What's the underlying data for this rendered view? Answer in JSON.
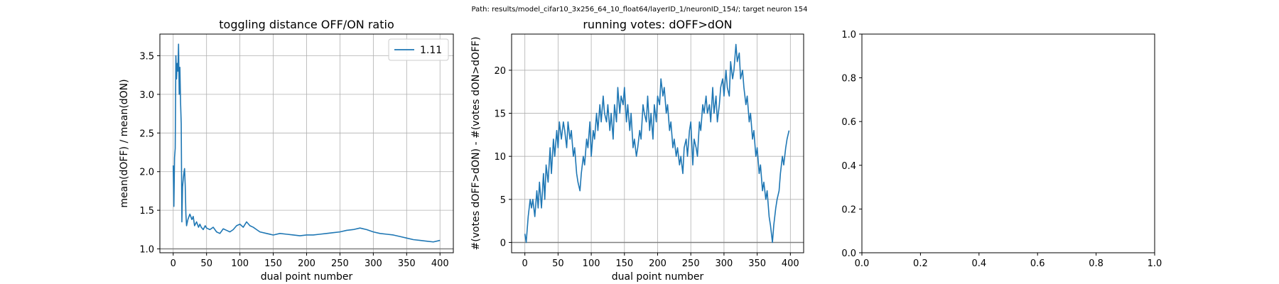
{
  "suptitle": "Path: results/model_cifar10_3x256_64_10_float64/layerID_1/neuronID_154/; target neuron 154",
  "colors": {
    "series": "#1f77b4",
    "grid": "#b0b0b0",
    "baseline": "#808080"
  },
  "chart_data": [
    {
      "type": "line",
      "title": "toggling distance OFF/ON ratio",
      "xlabel": "dual point number",
      "ylabel": "mean(dOFF) / mean(dON)",
      "xlim": [
        -20,
        420
      ],
      "ylim": [
        0.95,
        3.78
      ],
      "xticks": [
        0,
        50,
        100,
        150,
        200,
        250,
        300,
        350,
        400
      ],
      "yticks": [
        1.0,
        1.5,
        2.0,
        2.5,
        3.0,
        3.5
      ],
      "ytick_labels": [
        "1.0",
        "1.5",
        "2.0",
        "2.5",
        "3.0",
        "3.5"
      ],
      "grid": true,
      "baseline": 1.0,
      "legend": {
        "position": "top-right",
        "entries": [
          "1.11"
        ]
      },
      "series": [
        {
          "name": "1.11",
          "x": [
            0,
            1,
            2,
            3,
            4,
            5,
            6,
            7,
            8,
            9,
            10,
            11,
            12,
            13,
            14,
            15,
            16,
            17,
            18,
            19,
            20,
            22,
            25,
            28,
            30,
            32,
            35,
            38,
            40,
            42,
            45,
            48,
            50,
            55,
            60,
            65,
            70,
            75,
            80,
            85,
            90,
            95,
            100,
            105,
            110,
            115,
            120,
            125,
            130,
            140,
            150,
            160,
            170,
            180,
            190,
            200,
            210,
            220,
            230,
            240,
            250,
            260,
            270,
            280,
            290,
            300,
            310,
            320,
            330,
            340,
            350,
            360,
            370,
            380,
            390,
            400
          ],
          "y": [
            2.08,
            1.55,
            2.18,
            2.3,
            3.5,
            3.2,
            3.4,
            3.3,
            3.65,
            3.0,
            3.35,
            2.9,
            2.62,
            1.35,
            1.8,
            1.9,
            1.98,
            2.04,
            1.82,
            1.45,
            1.3,
            1.38,
            1.45,
            1.38,
            1.42,
            1.3,
            1.35,
            1.28,
            1.32,
            1.28,
            1.25,
            1.3,
            1.27,
            1.25,
            1.28,
            1.22,
            1.2,
            1.26,
            1.24,
            1.22,
            1.25,
            1.3,
            1.32,
            1.28,
            1.35,
            1.3,
            1.28,
            1.25,
            1.22,
            1.2,
            1.18,
            1.2,
            1.19,
            1.18,
            1.17,
            1.18,
            1.18,
            1.19,
            1.2,
            1.21,
            1.22,
            1.24,
            1.25,
            1.27,
            1.25,
            1.22,
            1.2,
            1.19,
            1.18,
            1.16,
            1.14,
            1.12,
            1.11,
            1.1,
            1.09,
            1.11
          ]
        }
      ]
    },
    {
      "type": "line",
      "title": "running votes: dOFF>dON",
      "xlabel": "dual point number",
      "ylabel": "#(votes dOFF>dON) - #(votes dON>dOFF)",
      "xlim": [
        -20,
        420
      ],
      "ylim": [
        -1.2,
        24.2
      ],
      "xticks": [
        0,
        50,
        100,
        150,
        200,
        250,
        300,
        350,
        400
      ],
      "yticks": [
        0,
        5,
        10,
        15,
        20
      ],
      "ytick_labels": [
        "0",
        "5",
        "10",
        "15",
        "20"
      ],
      "grid": true,
      "baseline": 0,
      "series": [
        {
          "name": "",
          "x": [
            0,
            2,
            5,
            8,
            10,
            12,
            15,
            18,
            20,
            22,
            25,
            28,
            30,
            32,
            35,
            38,
            40,
            43,
            45,
            48,
            50,
            52,
            55,
            58,
            60,
            63,
            65,
            68,
            70,
            73,
            75,
            78,
            80,
            83,
            85,
            88,
            90,
            93,
            95,
            98,
            100,
            103,
            105,
            108,
            110,
            113,
            115,
            118,
            120,
            123,
            125,
            128,
            130,
            133,
            135,
            138,
            140,
            143,
            145,
            148,
            150,
            153,
            155,
            158,
            160,
            163,
            165,
            168,
            170,
            173,
            175,
            178,
            180,
            183,
            185,
            188,
            190,
            193,
            195,
            198,
            200,
            203,
            205,
            208,
            210,
            213,
            215,
            218,
            220,
            223,
            225,
            228,
            230,
            233,
            235,
            238,
            240,
            243,
            245,
            248,
            250,
            253,
            255,
            258,
            260,
            263,
            265,
            268,
            270,
            273,
            275,
            278,
            280,
            283,
            285,
            288,
            290,
            293,
            295,
            298,
            300,
            303,
            305,
            308,
            310,
            313,
            315,
            318,
            320,
            323,
            325,
            328,
            330,
            333,
            335,
            338,
            340,
            343,
            345,
            348,
            350,
            353,
            355,
            358,
            360,
            363,
            365,
            368,
            370,
            373,
            375,
            378,
            380,
            383,
            385,
            388,
            390,
            393,
            395,
            398
          ],
          "y": [
            1,
            0,
            3,
            5,
            4,
            5,
            3,
            6,
            4,
            7,
            4,
            8,
            5,
            9,
            7,
            11,
            8,
            12,
            10,
            13,
            11,
            14,
            12,
            14,
            13,
            11,
            14,
            12,
            13,
            10,
            11,
            8,
            7,
            6,
            8,
            10,
            9,
            12,
            11,
            14,
            10,
            13,
            12,
            15,
            13,
            16,
            14,
            17,
            15,
            14,
            16,
            13,
            15,
            12,
            16,
            14,
            18,
            15,
            17,
            16,
            18,
            14,
            16,
            13,
            15,
            11,
            12,
            10,
            11,
            13,
            12,
            16,
            15,
            14,
            17,
            13,
            15,
            12,
            16,
            14,
            17,
            16,
            19,
            17,
            18,
            15,
            16,
            13,
            14,
            11,
            12,
            10,
            11,
            9,
            10,
            8,
            11,
            12,
            10,
            13,
            14,
            9,
            12,
            11,
            10,
            14,
            13,
            16,
            15,
            17,
            15,
            16,
            14,
            18,
            15,
            17,
            14,
            16,
            18,
            19,
            17,
            20,
            18,
            17,
            21,
            19,
            20,
            23,
            21,
            22,
            19,
            20,
            18,
            16,
            17,
            14,
            15,
            12,
            13,
            10,
            11,
            8,
            9,
            6,
            7,
            5,
            6,
            3,
            2,
            0,
            2,
            4,
            5,
            6,
            8,
            10,
            9,
            11,
            12,
            13
          ]
        }
      ]
    },
    {
      "type": "line",
      "title": "",
      "xlabel": "",
      "ylabel": "",
      "xlim": [
        0,
        1
      ],
      "ylim": [
        0,
        1
      ],
      "xticks": [
        0,
        0.2,
        0.4,
        0.6,
        0.8,
        1.0
      ],
      "xtick_labels": [
        "0.0",
        "0.2",
        "0.4",
        "0.6",
        "0.8",
        "1.0"
      ],
      "yticks": [
        0,
        0.2,
        0.4,
        0.6,
        0.8,
        1.0
      ],
      "ytick_labels": [
        "0.0",
        "0.2",
        "0.4",
        "0.6",
        "0.8",
        "1.0"
      ],
      "grid": false,
      "series": []
    }
  ]
}
